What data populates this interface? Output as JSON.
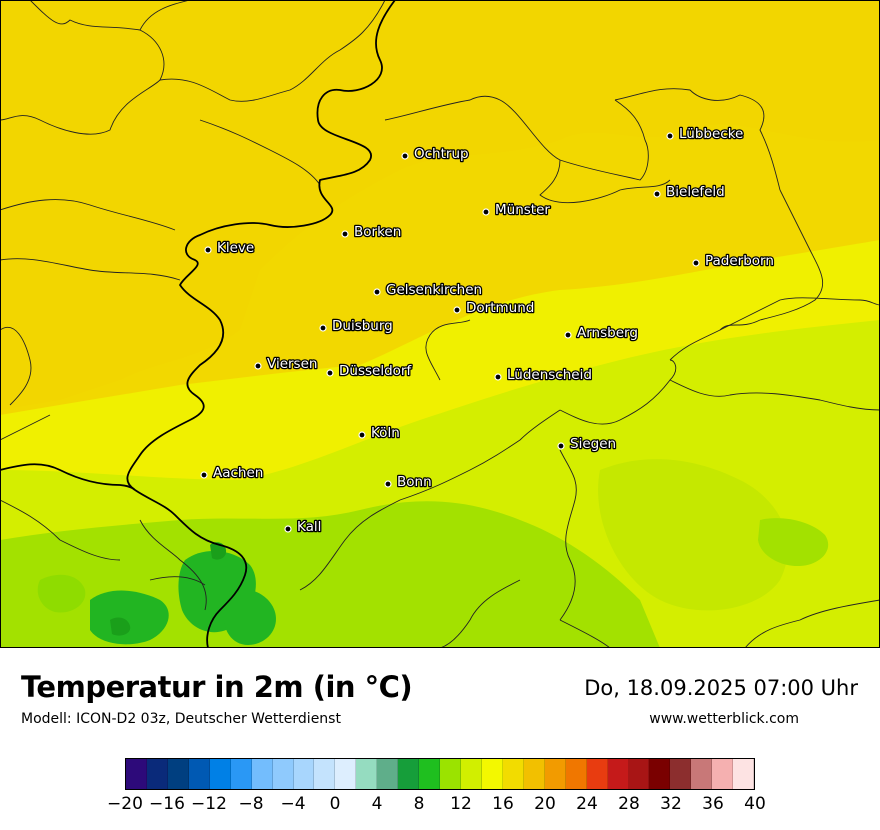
{
  "map": {
    "cities": [
      {
        "name": "Lübbecke"
      },
      {
        "name": "Ochtrup"
      },
      {
        "name": "Bielefeld"
      },
      {
        "name": "Münster"
      },
      {
        "name": "Borken"
      },
      {
        "name": "Kleve"
      },
      {
        "name": "Paderborn"
      },
      {
        "name": "Gelsenkirchen"
      },
      {
        "name": "Dortmund"
      },
      {
        "name": "Duisburg"
      },
      {
        "name": "Arnsberg"
      },
      {
        "name": "Viersen"
      },
      {
        "name": "Düsseldorf"
      },
      {
        "name": "Lüdenscheid"
      },
      {
        "name": "Köln"
      },
      {
        "name": "Siegen"
      },
      {
        "name": "Aachen"
      },
      {
        "name": "Bonn"
      },
      {
        "name": "Kall"
      }
    ]
  },
  "footer": {
    "title": "Temperatur in 2m (in °C)",
    "model": "Modell: ICON-D2 03z, Deutscher Wetterdienst",
    "datetime": "Do, 18.09.2025 07:00 Uhr",
    "website": "www.wetterblick.com"
  },
  "legend": {
    "ticks": [
      "−20",
      "−16",
      "−12",
      "−8",
      "−4",
      "0",
      "4",
      "8",
      "12",
      "16",
      "20",
      "24",
      "28",
      "32",
      "36",
      "40"
    ],
    "colors": [
      "#2d0a7a",
      "#0a2a7a",
      "#003f80",
      "#0059b3",
      "#0080e6",
      "#2a98f5",
      "#73bdfd",
      "#8fcafd",
      "#a8d6fd",
      "#c4e3fd",
      "#ddeefe",
      "#95dcc0",
      "#5fae8a",
      "#169e3a",
      "#1fbf1f",
      "#9be300",
      "#d1ef00",
      "#f3f800",
      "#f2dc00",
      "#f2c000",
      "#f29b00",
      "#f07700",
      "#e83c10",
      "#c51a1a",
      "#a81515",
      "#7a0000",
      "#8c2e2e",
      "#c87878",
      "#f5b0b0",
      "#fde3e3"
    ]
  }
}
